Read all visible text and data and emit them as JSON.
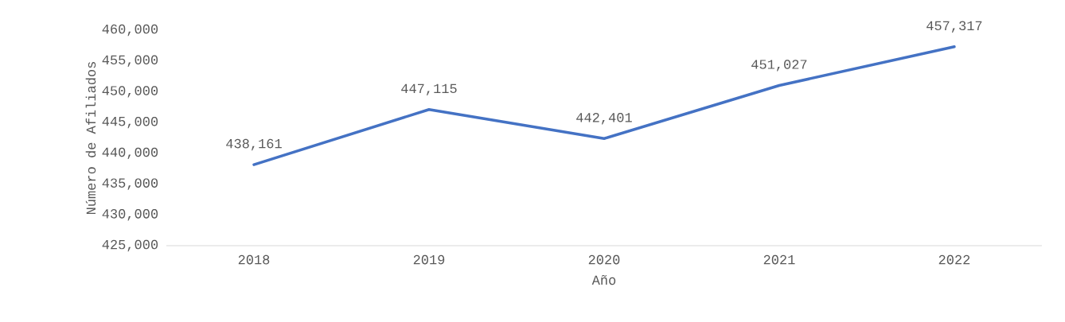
{
  "chart_data": {
    "type": "line",
    "xlabel": "Año",
    "ylabel": "Número de Afiliados",
    "categories": [
      "2018",
      "2019",
      "2020",
      "2021",
      "2022"
    ],
    "series": [
      {
        "color": "#4472c4",
        "values": [
          438161,
          447115,
          442401,
          451027,
          457317
        ],
        "value_labels": [
          "438,161",
          "447,115",
          "442,401",
          "451,027",
          "457,317"
        ]
      }
    ],
    "ylim": [
      425000,
      460000
    ],
    "yticks": [
      {
        "value": 425000,
        "label": "425,000"
      },
      {
        "value": 430000,
        "label": "430,000"
      },
      {
        "value": 435000,
        "label": "435,000"
      },
      {
        "value": 440000,
        "label": "440,000"
      },
      {
        "value": 445000,
        "label": "445,000"
      },
      {
        "value": 450000,
        "label": "450,000"
      },
      {
        "value": 455000,
        "label": "455,000"
      },
      {
        "value": 460000,
        "label": "460,000"
      }
    ],
    "grid": false,
    "marker": "none",
    "line_style": "solid"
  }
}
